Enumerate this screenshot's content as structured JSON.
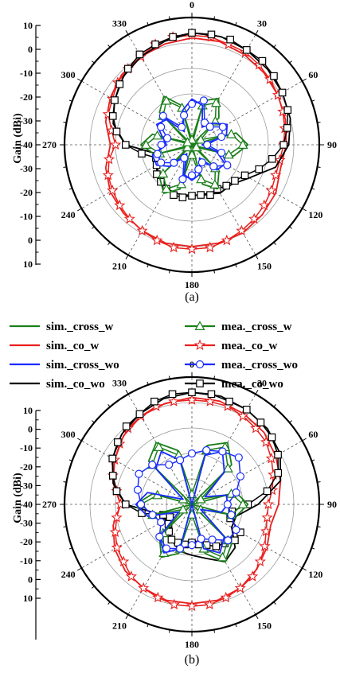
{
  "legend": {
    "entries": [
      {
        "label": "sim._cross_w",
        "color": "#1a7f1a",
        "marker": "none"
      },
      {
        "label": "sim._co_w",
        "color": "#e8201e",
        "marker": "none"
      },
      {
        "label": "sim._cross_wo",
        "color": "#1a2cff",
        "marker": "none"
      },
      {
        "label": "sim._co_wo",
        "color": "#000000",
        "marker": "none"
      },
      {
        "label": "mea._cross_w",
        "color": "#1a7f1a",
        "marker": "triangle"
      },
      {
        "label": "mea._co_w",
        "color": "#e8201e",
        "marker": "star"
      },
      {
        "label": "mea._cross_wo",
        "color": "#1a2cff",
        "marker": "circle"
      },
      {
        "label": "mea._co_wo",
        "color": "#000000",
        "marker": "square"
      }
    ]
  },
  "chart_data": [
    {
      "type": "polar-line",
      "caption": "(a)",
      "ylabel": "Gain (dBi)",
      "radial_range": [
        -40,
        10
      ],
      "radial_ticks_upper": [
        "10",
        "0",
        "-10",
        "-20",
        "-30",
        "-40"
      ],
      "radial_ticks_lower": [
        "-30",
        "-20",
        "-10",
        "0",
        "10"
      ],
      "angle_labels": [
        "0",
        "30",
        "60",
        "90",
        "120",
        "150",
        "180",
        "210",
        "240",
        "270",
        "300",
        "330"
      ],
      "grid": true,
      "series": [
        {
          "name": "sim._co_w",
          "color": "#e8201e",
          "marker": "none",
          "angles": [
            0,
            15,
            30,
            45,
            60,
            75,
            90,
            105,
            120,
            135,
            150,
            165,
            180,
            195,
            210,
            225,
            240,
            255,
            270,
            285,
            300,
            315,
            330,
            345
          ],
          "values": [
            2,
            2,
            1,
            0,
            -1,
            -2,
            -3,
            -4,
            -2,
            -1,
            0,
            0,
            0,
            0,
            -1,
            -2,
            -3,
            -5,
            -8,
            -5,
            -3,
            -1,
            0,
            1
          ]
        },
        {
          "name": "mea._co_w",
          "color": "#e8201e",
          "marker": "star",
          "angles": [
            0,
            10,
            20,
            30,
            40,
            50,
            60,
            70,
            80,
            90,
            100,
            110,
            120,
            130,
            140,
            150,
            160,
            170,
            180,
            190,
            200,
            210,
            220,
            230,
            240,
            250,
            260,
            270,
            280,
            290,
            300,
            310,
            320,
            330,
            340,
            350
          ],
          "values": [
            3,
            3,
            2,
            2,
            1,
            0,
            -1,
            -2,
            -3,
            -4,
            -5,
            -5,
            -4,
            -3,
            -2,
            -1,
            0,
            1,
            1,
            1,
            0,
            -1,
            -2,
            -3,
            -4,
            -5,
            -7,
            -10,
            -8,
            -5,
            -4,
            -2,
            -1,
            0,
            2,
            3
          ]
        },
        {
          "name": "sim._co_wo",
          "color": "#000000",
          "marker": "none",
          "angles": [
            0,
            15,
            30,
            45,
            60,
            75,
            90,
            105,
            120,
            135,
            150,
            165,
            180,
            195,
            210,
            225,
            240,
            255,
            270,
            285,
            300,
            315,
            330,
            345
          ],
          "values": [
            4,
            4,
            3,
            2,
            1,
            0,
            -2,
            -6,
            -14,
            -18,
            -18,
            -20,
            -20,
            -20,
            -20,
            -22,
            -24,
            -26,
            -14,
            -8,
            -5,
            -2,
            0,
            2
          ]
        },
        {
          "name": "mea._co_wo",
          "color": "#000000",
          "marker": "square",
          "angles": [
            0,
            10,
            20,
            30,
            40,
            50,
            60,
            70,
            80,
            90,
            100,
            110,
            120,
            130,
            140,
            150,
            160,
            170,
            180,
            190,
            200,
            210,
            220,
            230,
            240,
            250,
            260,
            270,
            280,
            290,
            300,
            310,
            320,
            330,
            340,
            350
          ],
          "values": [
            4,
            4,
            4,
            3,
            3,
            2,
            1,
            0,
            -2,
            -4,
            -8,
            -12,
            -16,
            -18,
            -19,
            -20,
            -19,
            -20,
            -20,
            -19,
            -19,
            -20,
            -21,
            -22,
            -24,
            -25,
            -20,
            -14,
            -10,
            -7,
            -5,
            -3,
            -1,
            1,
            2,
            3
          ]
        },
        {
          "name": "sim._cross_w",
          "color": "#1a7f1a",
          "marker": "none",
          "angles": [
            0,
            15,
            30,
            45,
            60,
            75,
            90,
            105,
            120,
            135,
            150,
            165,
            180,
            195,
            210,
            225,
            240,
            255,
            270,
            285,
            300,
            315,
            330,
            345
          ],
          "values": [
            -40,
            -22,
            -19,
            -25,
            -40,
            -22,
            -18,
            -23,
            -40,
            -25,
            -20,
            -24,
            -40,
            -22,
            -18,
            -22,
            -40,
            -25,
            -20,
            -24,
            -40,
            -22,
            -18,
            -24
          ]
        },
        {
          "name": "mea._cross_w",
          "color": "#1a7f1a",
          "marker": "triangle",
          "angles": [
            0,
            15,
            30,
            45,
            60,
            75,
            90,
            105,
            120,
            135,
            150,
            165,
            180,
            195,
            210,
            225,
            240,
            255,
            270,
            285,
            300,
            315,
            330,
            345
          ],
          "values": [
            -38,
            -24,
            -21,
            -27,
            -36,
            -24,
            -20,
            -25,
            -38,
            -27,
            -22,
            -26,
            -36,
            -24,
            -20,
            -24,
            -38,
            -27,
            -22,
            -26,
            -38,
            -24,
            -20,
            -25
          ]
        },
        {
          "name": "sim._cross_wo",
          "color": "#1a2cff",
          "marker": "none",
          "angles": [
            0,
            15,
            30,
            45,
            60,
            75,
            90,
            105,
            120,
            135,
            150,
            165,
            180,
            195,
            210,
            225,
            240,
            255,
            270,
            285,
            300,
            315,
            330,
            345
          ],
          "values": [
            -22,
            -24,
            -32,
            -28,
            -24,
            -26,
            -36,
            -30,
            -25,
            -26,
            -34,
            -28,
            -26,
            -28,
            -36,
            -28,
            -24,
            -24,
            -30,
            -28,
            -24,
            -26,
            -34,
            -26
          ]
        },
        {
          "name": "mea._cross_wo",
          "color": "#1a2cff",
          "marker": "circle",
          "angles": [
            0,
            15,
            30,
            45,
            60,
            75,
            90,
            105,
            120,
            135,
            150,
            165,
            180,
            195,
            210,
            225,
            240,
            255,
            270,
            285,
            300,
            315,
            330,
            345
          ],
          "values": [
            -24,
            -22,
            -30,
            -30,
            -26,
            -28,
            -34,
            -28,
            -24,
            -28,
            -32,
            -30,
            -28,
            -26,
            -34,
            -30,
            -26,
            -26,
            -28,
            -30,
            -26,
            -24,
            -32,
            -28
          ]
        }
      ]
    },
    {
      "type": "polar-line",
      "caption": "(b)",
      "ylabel": "Gain (dBi)",
      "radial_range": [
        -40,
        10
      ],
      "radial_ticks_upper": [
        "10",
        "0",
        "-10",
        "-20",
        "-30",
        "-40"
      ],
      "radial_ticks_lower": [
        "-30",
        "-20",
        "-10",
        "0",
        "10"
      ],
      "angle_labels": [
        "0",
        "30",
        "60",
        "90",
        "120",
        "150",
        "180",
        "210",
        "240",
        "270",
        "300",
        "330"
      ],
      "grid": true,
      "series": [
        {
          "name": "sim._co_w",
          "color": "#e8201e",
          "marker": "none",
          "angles": [
            0,
            15,
            30,
            45,
            60,
            75,
            90,
            105,
            120,
            135,
            150,
            165,
            180,
            195,
            210,
            225,
            240,
            255,
            270,
            285,
            300,
            315,
            330,
            345
          ],
          "values": [
            2,
            2,
            1,
            0,
            -2,
            -4,
            -6,
            -8,
            -6,
            -4,
            -2,
            -1,
            -1,
            -1,
            -2,
            -3,
            -5,
            -8,
            -12,
            -8,
            -5,
            -2,
            0,
            1
          ]
        },
        {
          "name": "mea._co_w",
          "color": "#e8201e",
          "marker": "star",
          "angles": [
            0,
            10,
            20,
            30,
            40,
            50,
            60,
            70,
            80,
            90,
            100,
            110,
            120,
            130,
            140,
            150,
            160,
            170,
            180,
            190,
            200,
            210,
            220,
            230,
            240,
            250,
            260,
            270,
            280,
            290,
            300,
            310,
            320,
            330,
            340,
            350
          ],
          "values": [
            1,
            1,
            1,
            0,
            -1,
            -2,
            -4,
            -6,
            -8,
            -10,
            -10,
            -9,
            -7,
            -5,
            -3,
            -2,
            -1,
            0,
            0,
            0,
            -1,
            -2,
            -3,
            -5,
            -6,
            -8,
            -10,
            -12,
            -10,
            -7,
            -5,
            -3,
            -1,
            0,
            1,
            1
          ]
        },
        {
          "name": "sim._co_wo",
          "color": "#000000",
          "marker": "none",
          "angles": [
            0,
            15,
            30,
            45,
            60,
            75,
            90,
            105,
            120,
            135,
            150,
            165,
            180,
            195,
            210,
            225,
            240,
            255,
            270,
            285,
            300,
            315,
            330,
            345
          ],
          "values": [
            4,
            4,
            3,
            2,
            0,
            -4,
            -14,
            -22,
            -22,
            -16,
            -14,
            -18,
            -20,
            -21,
            -24,
            -26,
            -28,
            -26,
            -14,
            -8,
            -4,
            -1,
            1,
            3
          ]
        },
        {
          "name": "mea._co_wo",
          "color": "#000000",
          "marker": "square",
          "angles": [
            0,
            10,
            20,
            30,
            40,
            50,
            60,
            70,
            80,
            90,
            100,
            110,
            120,
            130,
            140,
            150,
            160,
            170,
            180,
            190,
            200,
            210,
            220,
            230,
            240,
            250,
            260,
            270,
            280,
            290,
            300,
            310,
            320,
            330,
            340,
            350
          ],
          "values": [
            4,
            4,
            3,
            3,
            2,
            1,
            -1,
            -4,
            -10,
            -18,
            -24,
            -24,
            -18,
            -18,
            -20,
            -21,
            -23,
            -24,
            -25,
            -24,
            -24,
            -24,
            -26,
            -28,
            -30,
            -28,
            -20,
            -14,
            -10,
            -7,
            -4,
            -2,
            0,
            1,
            3,
            4
          ]
        },
        {
          "name": "sim._cross_w",
          "color": "#1a7f1a",
          "marker": "none",
          "angles": [
            0,
            15,
            30,
            45,
            60,
            75,
            90,
            105,
            120,
            135,
            150,
            165,
            180,
            195,
            210,
            225,
            240,
            255,
            270,
            285,
            300,
            315,
            330,
            345
          ],
          "values": [
            -40,
            -16,
            -12,
            -18,
            -40,
            -22,
            -18,
            -22,
            -40,
            -18,
            -14,
            -20,
            -40,
            -20,
            -16,
            -22,
            -40,
            -22,
            -18,
            -24,
            -40,
            -16,
            -12,
            -18
          ]
        },
        {
          "name": "mea._cross_w",
          "color": "#1a7f1a",
          "marker": "triangle",
          "angles": [
            0,
            15,
            30,
            45,
            60,
            75,
            90,
            105,
            120,
            135,
            150,
            165,
            180,
            195,
            210,
            225,
            240,
            255,
            270,
            285,
            300,
            315,
            330,
            345
          ],
          "values": [
            -36,
            -18,
            -14,
            -20,
            -36,
            -24,
            -20,
            -24,
            -36,
            -20,
            -16,
            -22,
            -36,
            -22,
            -18,
            -24,
            -36,
            -24,
            -20,
            -26,
            -36,
            -18,
            -14,
            -20
          ]
        },
        {
          "name": "sim._cross_wo",
          "color": "#1a2cff",
          "marker": "none",
          "angles": [
            0,
            15,
            30,
            45,
            60,
            75,
            90,
            105,
            120,
            135,
            150,
            165,
            180,
            195,
            210,
            225,
            240,
            255,
            270,
            285,
            300,
            315,
            330,
            345
          ],
          "values": [
            -40,
            -20,
            -16,
            -22,
            -34,
            -26,
            -26,
            -28,
            -36,
            -22,
            -18,
            -22,
            -40,
            -22,
            -18,
            -22,
            -34,
            -22,
            -18,
            -22,
            -36,
            -20,
            -16,
            -22
          ]
        },
        {
          "name": "mea._cross_wo",
          "color": "#1a2cff",
          "marker": "circle",
          "angles": [
            0,
            15,
            30,
            45,
            60,
            75,
            90,
            105,
            120,
            135,
            150,
            165,
            180,
            195,
            210,
            225,
            240,
            255,
            270,
            285,
            300,
            315,
            330,
            345
          ],
          "values": [
            -20,
            -18,
            -16,
            -14,
            -18,
            -22,
            -26,
            -24,
            -20,
            -20,
            -24,
            -26,
            -24,
            -22,
            -20,
            -22,
            -26,
            -24,
            -20,
            -18,
            -16,
            -18,
            -22,
            -22
          ]
        }
      ]
    }
  ]
}
